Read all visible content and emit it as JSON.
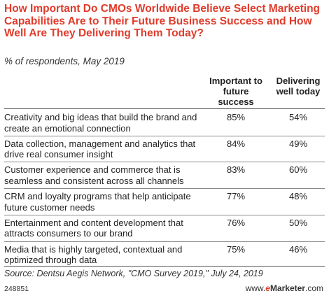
{
  "title": "How Important Do CMOs Worldwide Believe Select Marketing Capabilities Are to Their Future Business Success and How Well Are They Delivering Them Today?",
  "subtitle": "% of respondents, May 2019",
  "columns": [
    "Important to future success",
    "Delivering well today"
  ],
  "rows": [
    {
      "label": "Creativity and big ideas that build the brand and create an emotional connection",
      "important": "85%",
      "delivering": "54%"
    },
    {
      "label": "Data collection, management and analytics that drive real consumer insight",
      "important": "84%",
      "delivering": "49%"
    },
    {
      "label": "Customer experience and commerce that is seamless and consistent across all channels",
      "important": "83%",
      "delivering": "60%"
    },
    {
      "label": "CRM and loyalty programs that help anticipate future customer needs",
      "important": "77%",
      "delivering": "48%"
    },
    {
      "label": "Entertainment and content development that attracts consumers to our brand",
      "important": "76%",
      "delivering": "50%"
    },
    {
      "label": "Media that is highly targeted, contextual and optimized through data",
      "important": "75%",
      "delivering": "46%"
    }
  ],
  "source": "Source: Dentsu Aegis Network, \"CMO Survey 2019,\" July 24, 2019",
  "footer": {
    "chart_id": "248851",
    "site_prefix": "www.",
    "site_e": "e",
    "site_brand": "Marketer",
    "site_suffix": ".com"
  },
  "chart_data": {
    "type": "table",
    "title": "How Important Do CMOs Worldwide Believe Select Marketing Capabilities Are to Their Future Business Success and How Well Are They Delivering Them Today?",
    "subtitle": "% of respondents, May 2019",
    "columns": [
      "Important to future success",
      "Delivering well today"
    ],
    "categories": [
      "Creativity and big ideas that build the brand and create an emotional connection",
      "Data collection, management and analytics that drive real consumer insight",
      "Customer experience and commerce that is seamless and consistent across all channels",
      "CRM and loyalty programs that help anticipate future customer needs",
      "Entertainment and content development that attracts consumers to our brand",
      "Media that is highly targeted, contextual and optimized through data"
    ],
    "series": [
      {
        "name": "Important to future success",
        "values": [
          85,
          84,
          83,
          77,
          76,
          75
        ]
      },
      {
        "name": "Delivering well today",
        "values": [
          54,
          49,
          60,
          48,
          50,
          46
        ]
      }
    ]
  }
}
